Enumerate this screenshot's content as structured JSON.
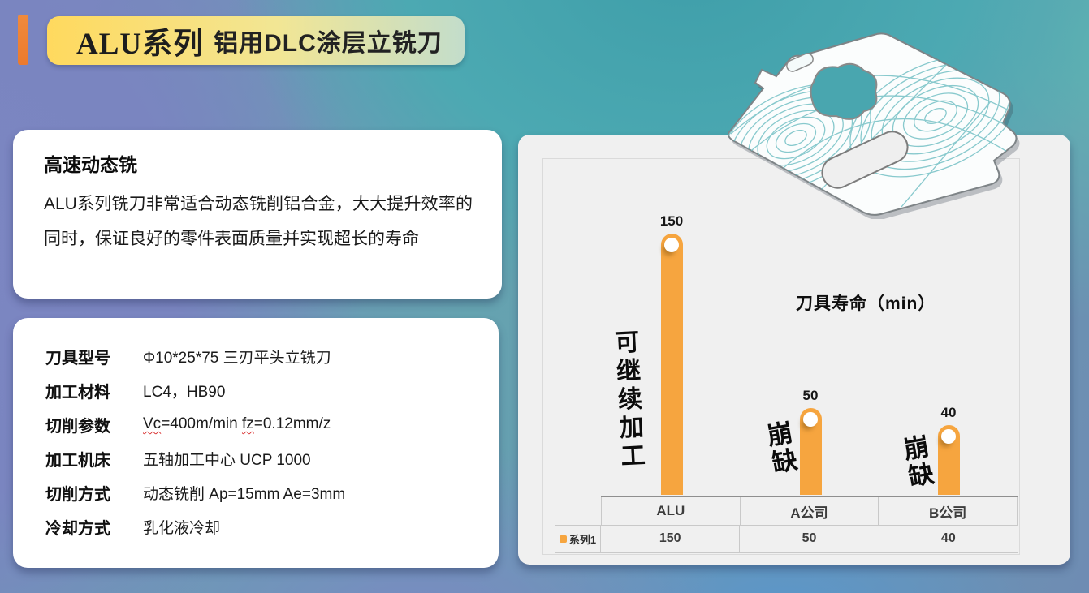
{
  "header": {
    "title_main": "ALU系列",
    "title_sub": "铝用DLC涂层立铣刀",
    "accent_color": "#EC7A2D",
    "pill_gradient": [
      "#FFD95E",
      "#C3DDCB"
    ]
  },
  "intro_card": {
    "heading": "高速动态铣",
    "body": "ALU系列铣刀非常适合动态铣削铝合金，大大提升效率的同时，保证良好的零件表面质量并实现超长的寿命"
  },
  "spec_card": {
    "rows": [
      {
        "label": "刀具型号",
        "value": "Φ10*25*75 三刃平头立铣刀"
      },
      {
        "label": "加工材料",
        "value": "LC4，HB90"
      },
      {
        "label": "切削参数",
        "value_parts": [
          {
            "text": "Vc",
            "spellcheck": true
          },
          {
            "text": "=400m/min "
          },
          {
            "text": "fz",
            "spellcheck": true
          },
          {
            "text": "=0.12mm/z"
          }
        ]
      },
      {
        "label": "加工机床",
        "value": "五轴加工中心 UCP 1000"
      },
      {
        "label": "切削方式",
        "value": "动态铣削 Ap=15mm  Ae=3mm"
      },
      {
        "label": "冷却方式",
        "value": "乳化液冷却"
      }
    ]
  },
  "chart_data": {
    "type": "bar",
    "title": "刀具寿命（min）",
    "series_name": "系列1",
    "categories": [
      "ALU",
      "A公司",
      "B公司"
    ],
    "values": [
      150,
      50,
      40
    ],
    "annotations": [
      "可继续加工",
      "崩缺",
      "崩缺"
    ],
    "ylim": [
      0,
      160
    ],
    "grid": false,
    "legend_position": "table-left",
    "data_table": true,
    "bar_color": "#F6A53F",
    "marker": "white-circle"
  }
}
